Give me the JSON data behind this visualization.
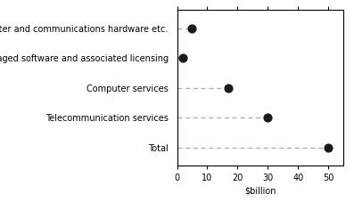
{
  "categories": [
    "Computer and communications hardware etc.",
    "Packaged software and associated licensing",
    "Computer services",
    "Telecommunication services",
    "Total"
  ],
  "values": [
    5,
    2,
    17,
    30,
    50
  ],
  "xlabel": "$billion",
  "xlim": [
    0,
    55
  ],
  "xticks": [
    0,
    10,
    20,
    30,
    40,
    50
  ],
  "dot_color": "#1a1a1a",
  "line_color": "#aaaaaa",
  "dot_size": 40,
  "bg_color": "#ffffff",
  "font_size": 7.0
}
